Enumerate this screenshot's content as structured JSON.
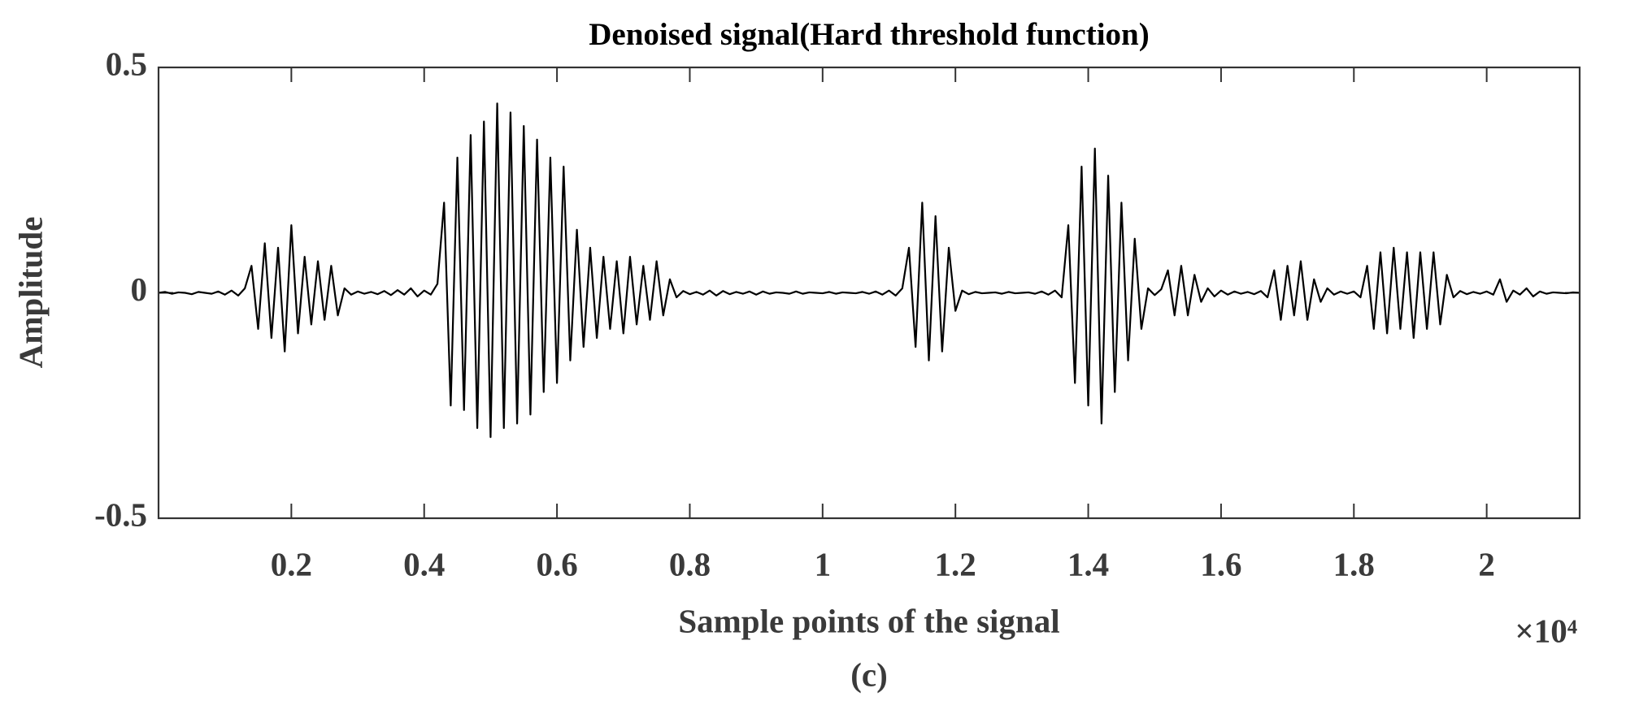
{
  "chart_data": {
    "type": "line",
    "title": "Denoised signal(Hard threshold function)",
    "xlabel": "Sample points of the signal",
    "ylabel": "Amplitude",
    "x_multiplier": "×10⁴",
    "caption": "(c)",
    "color": "#000000",
    "xlim": [
      0,
      2.14
    ],
    "ylim": [
      -0.5,
      0.5
    ],
    "xticks": [
      0.2,
      0.4,
      0.6,
      0.8,
      1,
      1.2,
      1.4,
      1.6,
      1.8,
      2
    ],
    "yticks": [
      -0.5,
      0,
      0.5
    ],
    "grid": false,
    "x": [
      0,
      0.01,
      0.02,
      0.03,
      0.04,
      0.05,
      0.06,
      0.07,
      0.08,
      0.09,
      0.1,
      0.11,
      0.12,
      0.13,
      0.14,
      0.15,
      0.16,
      0.17,
      0.18,
      0.19,
      0.2,
      0.21,
      0.22,
      0.23,
      0.24,
      0.25,
      0.26,
      0.27,
      0.28,
      0.29,
      0.3,
      0.31,
      0.32,
      0.33,
      0.34,
      0.35,
      0.36,
      0.37,
      0.38,
      0.39,
      0.4,
      0.41,
      0.42,
      0.43,
      0.44,
      0.45,
      0.46,
      0.47,
      0.48,
      0.49,
      0.5,
      0.51,
      0.52,
      0.53,
      0.54,
      0.55,
      0.56,
      0.57,
      0.58,
      0.59,
      0.6,
      0.61,
      0.62,
      0.63,
      0.64,
      0.65,
      0.66,
      0.67,
      0.68,
      0.69,
      0.7,
      0.71,
      0.72,
      0.73,
      0.74,
      0.75,
      0.76,
      0.77,
      0.78,
      0.79,
      0.8,
      0.81,
      0.82,
      0.83,
      0.84,
      0.85,
      0.86,
      0.87,
      0.88,
      0.89,
      0.9,
      0.91,
      0.92,
      0.93,
      0.94,
      0.95,
      0.96,
      0.97,
      0.98,
      0.99,
      1,
      1.01,
      1.02,
      1.03,
      1.04,
      1.05,
      1.06,
      1.07,
      1.08,
      1.09,
      1.1,
      1.11,
      1.12,
      1.13,
      1.14,
      1.15,
      1.16,
      1.17,
      1.18,
      1.19,
      1.2,
      1.21,
      1.22,
      1.23,
      1.24,
      1.25,
      1.26,
      1.27,
      1.28,
      1.29,
      1.3,
      1.31,
      1.32,
      1.33,
      1.34,
      1.35,
      1.36,
      1.37,
      1.38,
      1.39,
      1.4,
      1.41,
      1.42,
      1.43,
      1.44,
      1.45,
      1.46,
      1.47,
      1.48,
      1.49,
      1.5,
      1.51,
      1.52,
      1.53,
      1.54,
      1.55,
      1.56,
      1.57,
      1.58,
      1.59,
      1.6,
      1.61,
      1.62,
      1.63,
      1.64,
      1.65,
      1.66,
      1.67,
      1.68,
      1.69,
      1.7,
      1.71,
      1.72,
      1.73,
      1.74,
      1.75,
      1.76,
      1.77,
      1.78,
      1.79,
      1.8,
      1.81,
      1.82,
      1.83,
      1.84,
      1.85,
      1.86,
      1.87,
      1.88,
      1.89,
      1.9,
      1.91,
      1.92,
      1.93,
      1.94,
      1.95,
      1.96,
      1.97,
      1.98,
      1.99,
      2,
      2.01,
      2.02,
      2.03,
      2.04,
      2.05,
      2.06,
      2.07,
      2.08,
      2.09,
      2.1,
      2.11,
      2.12,
      2.13,
      2.14
    ],
    "values": [
      0,
      0.002,
      -0.002,
      0.001,
      0,
      -0.003,
      0.002,
      0,
      -0.002,
      0.003,
      -0.004,
      0.005,
      -0.006,
      0.01,
      0.06,
      -0.08,
      0.11,
      -0.1,
      0.1,
      -0.13,
      0.15,
      -0.09,
      0.08,
      -0.07,
      0.07,
      -0.06,
      0.06,
      -0.05,
      0.01,
      -0.004,
      0.003,
      -0.002,
      0.002,
      -0.003,
      0.004,
      -0.005,
      0.006,
      -0.004,
      0.01,
      -0.008,
      0.005,
      -0.004,
      0.02,
      0.2,
      -0.25,
      0.3,
      -0.26,
      0.35,
      -0.3,
      0.38,
      -0.32,
      0.42,
      -0.3,
      0.4,
      -0.29,
      0.37,
      -0.27,
      0.34,
      -0.22,
      0.3,
      -0.2,
      0.28,
      -0.15,
      0.14,
      -0.12,
      0.1,
      -0.1,
      0.08,
      -0.08,
      0.07,
      -0.09,
      0.08,
      -0.07,
      0.06,
      -0.06,
      0.07,
      -0.05,
      0.03,
      -0.01,
      0.004,
      -0.003,
      0.002,
      -0.004,
      0.005,
      -0.006,
      0.004,
      -0.003,
      0.002,
      -0.002,
      0.003,
      -0.004,
      0.003,
      -0.002,
      0.001,
      0,
      -0.002,
      0.003,
      -0.002,
      0.001,
      0,
      -0.001,
      0.002,
      -0.002,
      0.001,
      0,
      -0.001,
      0.002,
      -0.002,
      0.003,
      -0.004,
      0.005,
      -0.006,
      0.01,
      0.1,
      -0.12,
      0.2,
      -0.15,
      0.17,
      -0.13,
      0.1,
      -0.04,
      0.005,
      -0.003,
      0.002,
      -0.001,
      0,
      0.001,
      -0.002,
      0.002,
      -0.001,
      0,
      0.001,
      -0.002,
      0.003,
      -0.004,
      0.005,
      -0.01,
      0.15,
      -0.2,
      0.28,
      -0.25,
      0.32,
      -0.29,
      0.26,
      -0.22,
      0.2,
      -0.15,
      0.12,
      -0.08,
      0.01,
      -0.005,
      0.008,
      0.05,
      -0.05,
      0.06,
      -0.05,
      0.04,
      -0.02,
      0.01,
      -0.008,
      0.005,
      -0.004,
      0.003,
      -0.002,
      0.002,
      -0.003,
      0.004,
      -0.01,
      0.05,
      -0.06,
      0.06,
      -0.05,
      0.07,
      -0.06,
      0.03,
      -0.02,
      0.01,
      -0.004,
      0.003,
      -0.002,
      0.003,
      -0.01,
      0.06,
      -0.08,
      0.09,
      -0.09,
      0.1,
      -0.08,
      0.09,
      -0.1,
      0.09,
      -0.08,
      0.09,
      -0.07,
      0.04,
      -0.01,
      0.004,
      -0.003,
      0.002,
      -0.002,
      0.003,
      -0.004,
      0.03,
      -0.02,
      0.005,
      -0.004,
      0.01,
      -0.008,
      0.003,
      -0.002,
      0.001,
      0,
      -0.001,
      0.001,
      0
    ]
  }
}
